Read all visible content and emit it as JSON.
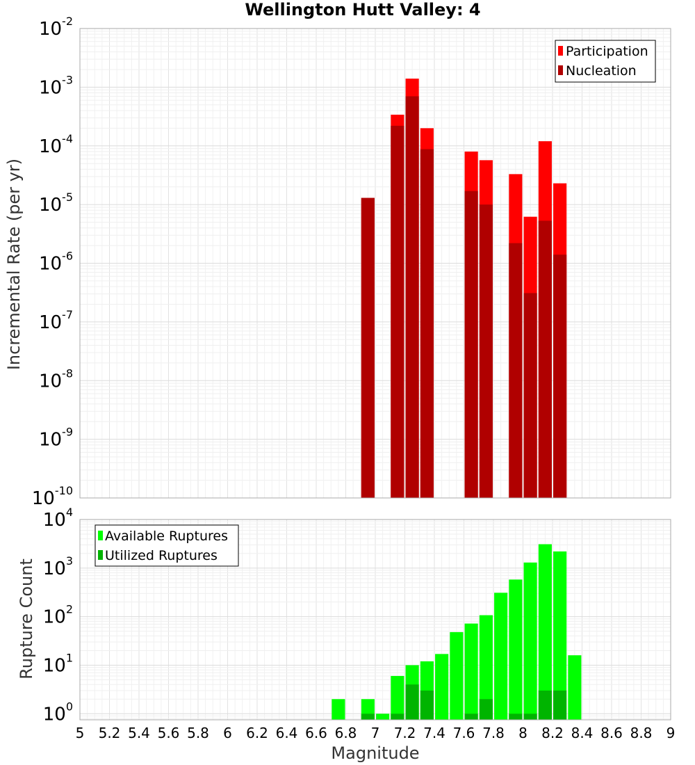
{
  "chart_data": [
    {
      "type": "bar",
      "title": "Wellington Hutt Valley: 4",
      "xlabel": "",
      "ylabel": "Incremental Rate (per yr)",
      "xlim": [
        5,
        9
      ],
      "ylim": [
        1e-10,
        0.01
      ],
      "yscale": "log",
      "y_tick_exponents": [
        -10,
        -9,
        -8,
        -7,
        -6,
        -5,
        -4,
        -3,
        -2
      ],
      "grid": true,
      "legend_position": "top-right",
      "colors": {
        "Participation": "#ff0000",
        "Nucleation": "#b00000"
      },
      "series": [
        {
          "name": "Participation",
          "x": [
            6.95,
            7.15,
            7.25,
            7.35,
            7.65,
            7.75,
            7.95,
            8.05,
            8.15,
            8.25
          ],
          "values": [
            1.3e-05,
            0.00034,
            0.0014,
            0.0002,
            8e-05,
            5.7e-05,
            3.3e-05,
            6.2e-06,
            0.00012,
            2.3e-05
          ]
        },
        {
          "name": "Nucleation",
          "x": [
            6.95,
            7.15,
            7.25,
            7.35,
            7.65,
            7.75,
            7.95,
            8.05,
            8.15,
            8.25
          ],
          "values": [
            1.3e-05,
            0.00022,
            0.0007,
            8.8e-05,
            1.7e-05,
            1e-05,
            2.2e-06,
            3.1e-07,
            5.3e-06,
            1.4e-06
          ]
        }
      ]
    },
    {
      "type": "bar",
      "title": "",
      "xlabel": "Magnitude",
      "ylabel": "Rupture Count",
      "xlim": [
        5,
        9
      ],
      "x_ticks": [
        "5",
        "5.2",
        "5.4",
        "5.6",
        "5.8",
        "6",
        "6.2",
        "6.4",
        "6.6",
        "6.8",
        "7",
        "7.2",
        "7.4",
        "7.6",
        "7.8",
        "8",
        "8.2",
        "8.4",
        "8.6",
        "8.8",
        "9"
      ],
      "ylim": [
        0.75,
        10000
      ],
      "yscale": "log",
      "y_tick_exponents": [
        0,
        1,
        2,
        3,
        4
      ],
      "grid": true,
      "legend_position": "top-left",
      "colors": {
        "Available Ruptures": "#00ff00",
        "Utilized Ruptures": "#00b400"
      },
      "series": [
        {
          "name": "Available Ruptures",
          "x": [
            6.75,
            6.95,
            7.05,
            7.15,
            7.25,
            7.35,
            7.45,
            7.55,
            7.65,
            7.75,
            7.85,
            7.95,
            8.05,
            8.15,
            8.25,
            8.35
          ],
          "values": [
            2,
            2,
            1,
            6,
            10,
            12,
            17,
            48,
            72,
            107,
            310,
            580,
            1300,
            3100,
            2200,
            16
          ]
        },
        {
          "name": "Utilized Ruptures",
          "x": [
            6.75,
            6.95,
            7.05,
            7.15,
            7.25,
            7.35,
            7.45,
            7.55,
            7.65,
            7.75,
            7.85,
            7.95,
            8.05,
            8.15,
            8.25,
            8.35
          ],
          "values": [
            0,
            1,
            0,
            1,
            4,
            3,
            0,
            0,
            1,
            2,
            0,
            1,
            1,
            3,
            3,
            0
          ]
        }
      ]
    }
  ]
}
